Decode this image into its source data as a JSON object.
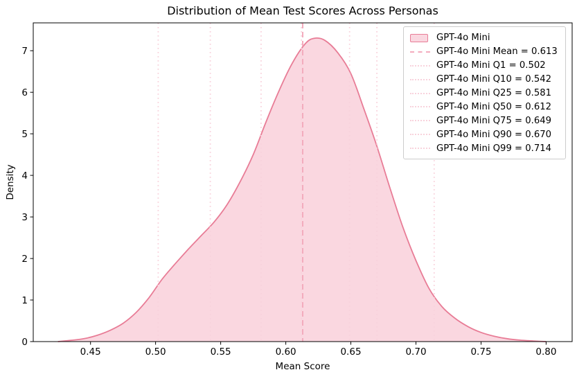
{
  "colors": {
    "curve_line": "#e87c96",
    "curve_fill": "#fad7e0",
    "mean_line": "#f3abbd",
    "quantile_line": "#f8d2dc",
    "spine": "#000000",
    "text": "#000000",
    "legend_border": "#cccccc"
  },
  "chart_data": {
    "type": "area",
    "subtype": "kde-density",
    "title": "Distribution of Mean Test Scores Across Personas",
    "xlabel": "Mean Score",
    "ylabel": "Density",
    "grid": false,
    "legend_position": "upper right",
    "xlim": [
      0.406,
      0.82
    ],
    "ylim": [
      0,
      7.67
    ],
    "x_ticks": {
      "values": [
        0.45,
        0.5,
        0.55,
        0.6,
        0.65,
        0.7,
        0.75,
        0.8
      ],
      "labels": [
        "0.45",
        "0.50",
        "0.55",
        "0.60",
        "0.65",
        "0.70",
        "0.75",
        "0.80"
      ]
    },
    "y_ticks": {
      "values": [
        0,
        1,
        2,
        3,
        4,
        5,
        6,
        7
      ],
      "labels": [
        "0",
        "1",
        "2",
        "3",
        "4",
        "5",
        "6",
        "7"
      ]
    },
    "series_name": "GPT-4o Mini",
    "curve": {
      "x": [
        0.425,
        0.435,
        0.445,
        0.455,
        0.465,
        0.475,
        0.485,
        0.495,
        0.505,
        0.515,
        0.525,
        0.535,
        0.545,
        0.555,
        0.565,
        0.575,
        0.585,
        0.595,
        0.605,
        0.615,
        0.622,
        0.63,
        0.64,
        0.65,
        0.66,
        0.67,
        0.68,
        0.69,
        0.7,
        0.71,
        0.72,
        0.73,
        0.74,
        0.75,
        0.76,
        0.77,
        0.78,
        0.79,
        0.8
      ],
      "density": [
        0.0,
        0.03,
        0.07,
        0.15,
        0.27,
        0.44,
        0.7,
        1.06,
        1.5,
        1.87,
        2.22,
        2.55,
        2.88,
        3.3,
        3.85,
        4.5,
        5.3,
        6.05,
        6.7,
        7.17,
        7.3,
        7.25,
        6.95,
        6.45,
        5.6,
        4.7,
        3.7,
        2.75,
        1.95,
        1.28,
        0.84,
        0.56,
        0.36,
        0.22,
        0.13,
        0.07,
        0.035,
        0.015,
        0.0
      ]
    },
    "stats": {
      "mean": 0.613,
      "quantiles": [
        {
          "name": "Q1",
          "value": 0.502
        },
        {
          "name": "Q10",
          "value": 0.542
        },
        {
          "name": "Q25",
          "value": 0.581
        },
        {
          "name": "Q50",
          "value": 0.612
        },
        {
          "name": "Q75",
          "value": 0.649
        },
        {
          "name": "Q90",
          "value": 0.67
        },
        {
          "name": "Q99",
          "value": 0.714
        }
      ]
    },
    "legend": {
      "items": [
        {
          "label": "GPT-4o Mini",
          "swatch": "patch"
        },
        {
          "label": "GPT-4o Mini Mean = 0.613",
          "swatch": "dashed"
        },
        {
          "label": "GPT-4o Mini Q1 = 0.502",
          "swatch": "dotted"
        },
        {
          "label": "GPT-4o Mini Q10 = 0.542",
          "swatch": "dotted"
        },
        {
          "label": "GPT-4o Mini Q25 = 0.581",
          "swatch": "dotted"
        },
        {
          "label": "GPT-4o Mini Q50 = 0.612",
          "swatch": "dotted"
        },
        {
          "label": "GPT-4o Mini Q75 = 0.649",
          "swatch": "dotted"
        },
        {
          "label": "GPT-4o Mini Q90 = 0.670",
          "swatch": "dotted"
        },
        {
          "label": "GPT-4o Mini Q99 = 0.714",
          "swatch": "dotted"
        }
      ]
    }
  }
}
